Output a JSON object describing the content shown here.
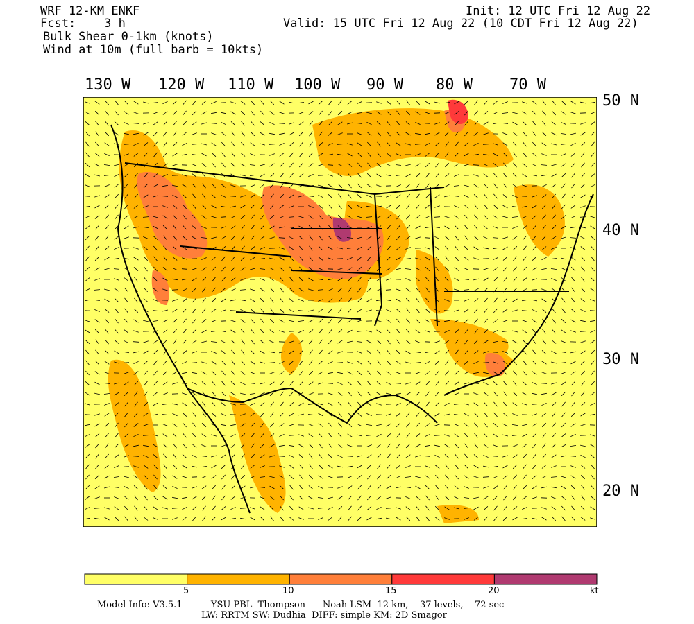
{
  "header": {
    "model": "WRF 12-KM ENKF",
    "fcst": "Fcst:    3 h",
    "field": "Bulk Shear 0-1km (knots)",
    "wind": "Wind at 10m (full barb = 10kts)",
    "init": "Init: 12 UTC Fri 12 Aug 22",
    "valid": "Valid: 15 UTC Fri 12 Aug 22 (10 CDT Fri 12 Aug 22)"
  },
  "map": {
    "longitude_labels": [
      "130 W",
      "120 W",
      "110 W",
      "100 W",
      "90 W",
      "80 W",
      "70 W"
    ],
    "latitude_labels": [
      "50 N",
      "40 N",
      "30 N",
      "20 N"
    ],
    "background_color": "#ffff66"
  },
  "colorbar": {
    "colors": [
      "#ffff66",
      "#ffb300",
      "#ff7f3a",
      "#ff3a3a",
      "#b03a70"
    ],
    "tick_labels": [
      "5",
      "10",
      "15",
      "20"
    ],
    "unit": "kt"
  },
  "footer": {
    "line1": "Model Info: V3.5.1          YSU PBL  Thompson      Noah LSM  12 km,    37 levels,    72 sec",
    "line2": "LW: RRTM SW: Dudhia  DIFF: simple KM: 2D Smagor"
  }
}
